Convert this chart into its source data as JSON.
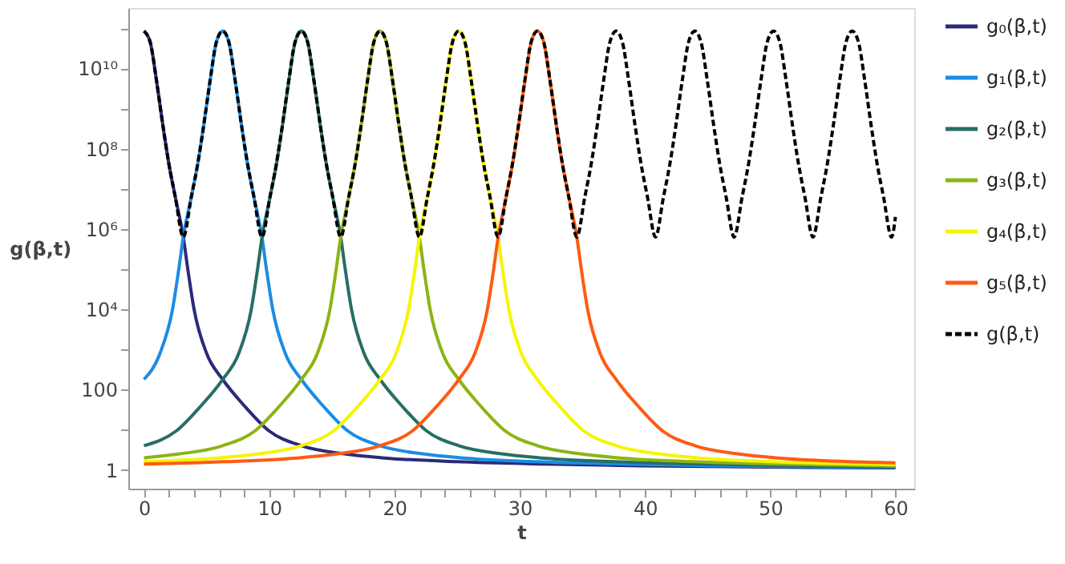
{
  "chart_data": {
    "type": "line",
    "xlabel": "t",
    "ylabel": "g(β,t)",
    "log": "y",
    "grid": false,
    "legend": "right",
    "marker": "none",
    "xlim": [
      -1.25,
      61.5
    ],
    "ylim": [
      0.34,
      320000000000.0
    ],
    "xticks": [
      0,
      {
        "value": 2,
        "label": null
      },
      {
        "value": 4,
        "label": null
      },
      {
        "value": 6,
        "label": null
      },
      {
        "value": 8,
        "label": null
      },
      10,
      {
        "value": 12,
        "label": null
      },
      {
        "value": 14,
        "label": null
      },
      {
        "value": 16,
        "label": null
      },
      {
        "value": 18,
        "label": null
      },
      20,
      {
        "value": 22,
        "label": null
      },
      {
        "value": 24,
        "label": null
      },
      {
        "value": 26,
        "label": null
      },
      {
        "value": 28,
        "label": null
      },
      30,
      {
        "value": 32,
        "label": null
      },
      {
        "value": 34,
        "label": null
      },
      {
        "value": 36,
        "label": null
      },
      {
        "value": 38,
        "label": null
      },
      40,
      {
        "value": 42,
        "label": null
      },
      {
        "value": 44,
        "label": null
      },
      {
        "value": 46,
        "label": null
      },
      {
        "value": 48,
        "label": null
      },
      50,
      {
        "value": 52,
        "label": null
      },
      {
        "value": 54,
        "label": null
      },
      {
        "value": 56,
        "label": null
      },
      {
        "value": 58,
        "label": null
      },
      60
    ],
    "yticks": [
      1,
      {
        "value": 10,
        "label": null
      },
      100,
      {
        "value": 1000,
        "label": null
      },
      {
        "value": 10000,
        "label": "10⁴"
      },
      {
        "value": 100000,
        "label": null
      },
      {
        "value": 1000000,
        "label": "10⁶"
      },
      {
        "value": 10000000,
        "label": null
      },
      {
        "value": 100000000,
        "label": "10⁸"
      },
      {
        "value": 1000000000,
        "label": null
      },
      {
        "value": 10000000000,
        "label": "10¹⁰"
      },
      {
        "value": 100000000000,
        "label": null
      }
    ],
    "series": [
      {
        "name": "g₀(β,t)",
        "color": "#2b2a78",
        "line_style": "solid",
        "x": [
          0,
          0.5,
          1,
          1.5,
          2,
          2.5,
          3.14,
          3.5,
          4,
          5,
          6.28,
          8,
          10,
          12.57,
          16,
          19,
          25,
          32,
          40,
          50,
          60
        ],
        "values": [
          85000000000.0,
          45000000000.0,
          5000000000.0,
          400000000.0,
          40000000.0,
          6300000.0,
          630000.0,
          100000.0,
          10000.0,
          800,
          180,
          40,
          9.3,
          4,
          2.5,
          2,
          1.6,
          1.4,
          1.26,
          1.17,
          1.12
        ]
      },
      {
        "name": "g₁(β,t)",
        "color": "#1a8ce6",
        "line_style": "solid",
        "x": [
          0,
          1.28,
          2.28,
          2.78,
          3.14,
          3.78,
          4.28,
          4.78,
          5.28,
          5.78,
          6.28,
          6.78,
          7.28,
          7.78,
          8.28,
          8.78,
          9.42,
          9.78,
          10.28,
          11.28,
          12.56,
          14.28,
          16.28,
          18.85,
          22.28,
          25.28,
          31.28,
          38.28,
          46.28,
          56.28,
          60
        ],
        "values": [
          180,
          800,
          10000.0,
          100000.0,
          630000.0,
          6300000.0,
          40000000.0,
          400000000.0,
          5000000000.0,
          45000000000.0,
          85000000000.0,
          45000000000.0,
          5000000000.0,
          400000000.0,
          40000000.0,
          6300000.0,
          630000.0,
          100000.0,
          10000.0,
          800,
          180,
          40,
          9.3,
          4,
          2.5,
          2,
          1.6,
          1.4,
          1.26,
          1.17,
          1.15
        ]
      },
      {
        "name": "g₂(β,t)",
        "color": "#276e64",
        "line_style": "solid",
        "x": [
          0,
          2.57,
          4.57,
          6.29,
          7.57,
          8.57,
          9.07,
          9.43,
          10.07,
          10.57,
          11.07,
          11.57,
          12.07,
          12.57,
          13.07,
          13.57,
          14.07,
          14.57,
          15.07,
          15.71,
          16.07,
          16.57,
          17.57,
          18.85,
          20.57,
          22.57,
          25.14,
          28.57,
          31.57,
          37.57,
          44.57,
          52.57,
          60
        ],
        "values": [
          4,
          9.3,
          40,
          180,
          800,
          10000.0,
          100000.0,
          630000.0,
          6300000.0,
          40000000.0,
          400000000.0,
          5000000000.0,
          45000000000.0,
          85000000000.0,
          45000000000.0,
          5000000000.0,
          400000000.0,
          40000000.0,
          6300000.0,
          630000.0,
          100000.0,
          10000.0,
          800,
          180,
          40,
          9.3,
          4,
          2.5,
          2,
          1.6,
          1.4,
          1.26,
          1.19
        ]
      },
      {
        "name": "g₃(β,t)",
        "color": "#8cb414",
        "line_style": "solid",
        "x": [
          0,
          2.85,
          6.28,
          8.85,
          10.85,
          12.57,
          13.85,
          14.85,
          15.35,
          15.71,
          16.35,
          16.85,
          17.35,
          17.85,
          18.35,
          18.85,
          19.35,
          19.85,
          20.35,
          20.85,
          21.35,
          21.99,
          22.35,
          22.85,
          23.85,
          25.13,
          26.85,
          28.85,
          31.42,
          34.85,
          37.85,
          43.85,
          50.85,
          60
        ],
        "values": [
          2,
          2.5,
          4,
          9.3,
          40,
          180,
          800,
          10000.0,
          100000.0,
          630000.0,
          6300000.0,
          40000000.0,
          400000000.0,
          5000000000.0,
          45000000000.0,
          85000000000.0,
          45000000000.0,
          5000000000.0,
          400000000.0,
          40000000.0,
          6300000.0,
          630000.0,
          100000.0,
          10000.0,
          800,
          180,
          40,
          9.3,
          4,
          2.5,
          2,
          1.6,
          1.4,
          1.25
        ]
      },
      {
        "name": "g₄(β,t)",
        "color": "#f5f500",
        "line_style": "solid",
        "x": [
          0,
          6.13,
          9.13,
          12.56,
          15.13,
          17.13,
          18.85,
          20.13,
          21.13,
          21.63,
          21.99,
          22.63,
          23.13,
          23.63,
          24.13,
          24.63,
          25.13,
          25.63,
          26.13,
          26.63,
          27.13,
          27.63,
          28.27,
          28.63,
          29.13,
          30.13,
          31.41,
          33.13,
          35.13,
          37.7,
          41.13,
          44.13,
          50.13,
          60
        ],
        "values": [
          1.6,
          2,
          2.5,
          4,
          9.3,
          40,
          180,
          800,
          10000.0,
          100000.0,
          630000.0,
          6300000.0,
          40000000.0,
          400000000.0,
          5000000000.0,
          45000000000.0,
          85000000000.0,
          45000000000.0,
          5000000000.0,
          400000000.0,
          40000000.0,
          6300000.0,
          630000.0,
          100000.0,
          10000.0,
          800,
          180,
          40,
          9.3,
          4,
          2.5,
          2,
          1.6,
          1.35
        ]
      },
      {
        "name": "g₅(β,t)",
        "color": "#ff5a14",
        "line_style": "solid",
        "x": [
          0,
          6.42,
          12.42,
          15.42,
          18.85,
          21.42,
          23.42,
          25.14,
          26.42,
          27.42,
          27.92,
          28.28,
          28.92,
          29.42,
          29.92,
          30.42,
          30.92,
          31.42,
          31.92,
          32.42,
          32.92,
          33.42,
          33.92,
          34.56,
          34.92,
          35.42,
          36.42,
          37.7,
          39.42,
          41.42,
          43.99,
          47.42,
          50.42,
          56.42,
          60
        ],
        "values": [
          1.4,
          1.6,
          2,
          2.5,
          4,
          9.3,
          40,
          180,
          800,
          10000.0,
          100000.0,
          630000.0,
          6300000.0,
          40000000.0,
          400000000.0,
          5000000000.0,
          45000000000.0,
          85000000000.0,
          45000000000.0,
          5000000000.0,
          400000000.0,
          40000000.0,
          6300000.0,
          630000.0,
          100000.0,
          10000.0,
          800,
          180,
          40,
          9.3,
          4,
          2.5,
          2,
          1.6,
          1.5
        ]
      },
      {
        "name": "g(β,t)",
        "color": "#000000",
        "line_style": "dashed",
        "x": [
          0,
          0.5,
          1,
          1.5,
          2,
          2.5,
          3.14,
          3.78,
          4.28,
          4.78,
          5.28,
          5.78,
          6.28,
          6.78,
          7.28,
          7.78,
          8.28,
          8.78,
          9.42,
          10.06,
          10.56,
          11.06,
          11.56,
          12.06,
          12.57,
          13.07,
          13.57,
          14.07,
          14.57,
          15.07,
          15.71,
          16.35,
          16.85,
          17.35,
          17.85,
          18.35,
          18.85,
          19.35,
          19.85,
          20.35,
          20.85,
          21.35,
          21.99,
          22.63,
          23.13,
          23.63,
          24.13,
          24.63,
          25.13,
          25.63,
          26.13,
          26.63,
          27.13,
          27.63,
          28.27,
          28.91,
          29.41,
          29.91,
          30.41,
          30.91,
          31.42,
          31.92,
          32.42,
          32.92,
          33.42,
          33.92,
          34.56,
          35.2,
          35.7,
          36.2,
          36.7,
          37.2,
          37.7,
          38.2,
          38.7,
          39.2,
          39.7,
          40.2,
          40.84,
          41.48,
          41.98,
          42.48,
          42.98,
          43.48,
          43.98,
          44.48,
          44.98,
          45.48,
          45.98,
          46.48,
          47.12,
          47.76,
          48.26,
          48.76,
          49.26,
          49.76,
          50.27,
          50.77,
          51.27,
          51.77,
          52.27,
          52.77,
          53.41,
          54.05,
          54.55,
          55.05,
          55.55,
          56.05,
          56.55,
          57.05,
          57.55,
          58.05,
          58.55,
          59.05,
          59.69,
          60
        ],
        "values": [
          85000000000.0,
          45000000000.0,
          5000000000.0,
          400000000.0,
          40000000.0,
          6300000.0,
          630000.0,
          6300000.0,
          40000000.0,
          400000000.0,
          5000000000.0,
          45000000000.0,
          85000000000.0,
          45000000000.0,
          5000000000.0,
          400000000.0,
          40000000.0,
          6300000.0,
          630000.0,
          6300000.0,
          40000000.0,
          400000000.0,
          5000000000.0,
          45000000000.0,
          85000000000.0,
          45000000000.0,
          5000000000.0,
          400000000.0,
          40000000.0,
          6300000.0,
          630000.0,
          6300000.0,
          40000000.0,
          400000000.0,
          5000000000.0,
          45000000000.0,
          85000000000.0,
          45000000000.0,
          5000000000.0,
          400000000.0,
          40000000.0,
          6300000.0,
          630000.0,
          6300000.0,
          40000000.0,
          400000000.0,
          5000000000.0,
          45000000000.0,
          85000000000.0,
          45000000000.0,
          5000000000.0,
          400000000.0,
          40000000.0,
          6300000.0,
          630000.0,
          6300000.0,
          40000000.0,
          400000000.0,
          5000000000.0,
          45000000000.0,
          85000000000.0,
          45000000000.0,
          5000000000.0,
          400000000.0,
          40000000.0,
          6300000.0,
          630000.0,
          6300000.0,
          40000000.0,
          400000000.0,
          5000000000.0,
          45000000000.0,
          85000000000.0,
          45000000000.0,
          5000000000.0,
          400000000.0,
          40000000.0,
          6300000.0,
          630000.0,
          6300000.0,
          40000000.0,
          400000000.0,
          5000000000.0,
          45000000000.0,
          85000000000.0,
          45000000000.0,
          5000000000.0,
          400000000.0,
          40000000.0,
          6300000.0,
          630000.0,
          6300000.0,
          40000000.0,
          400000000.0,
          5000000000.0,
          45000000000.0,
          85000000000.0,
          45000000000.0,
          5000000000.0,
          400000000.0,
          40000000.0,
          6300000.0,
          630000.0,
          6300000.0,
          40000000.0,
          400000000.0,
          5000000000.0,
          45000000000.0,
          85000000000.0,
          45000000000.0,
          5000000000.0,
          400000000.0,
          40000000.0,
          6300000.0,
          630000.0,
          2000000.0
        ]
      }
    ]
  }
}
